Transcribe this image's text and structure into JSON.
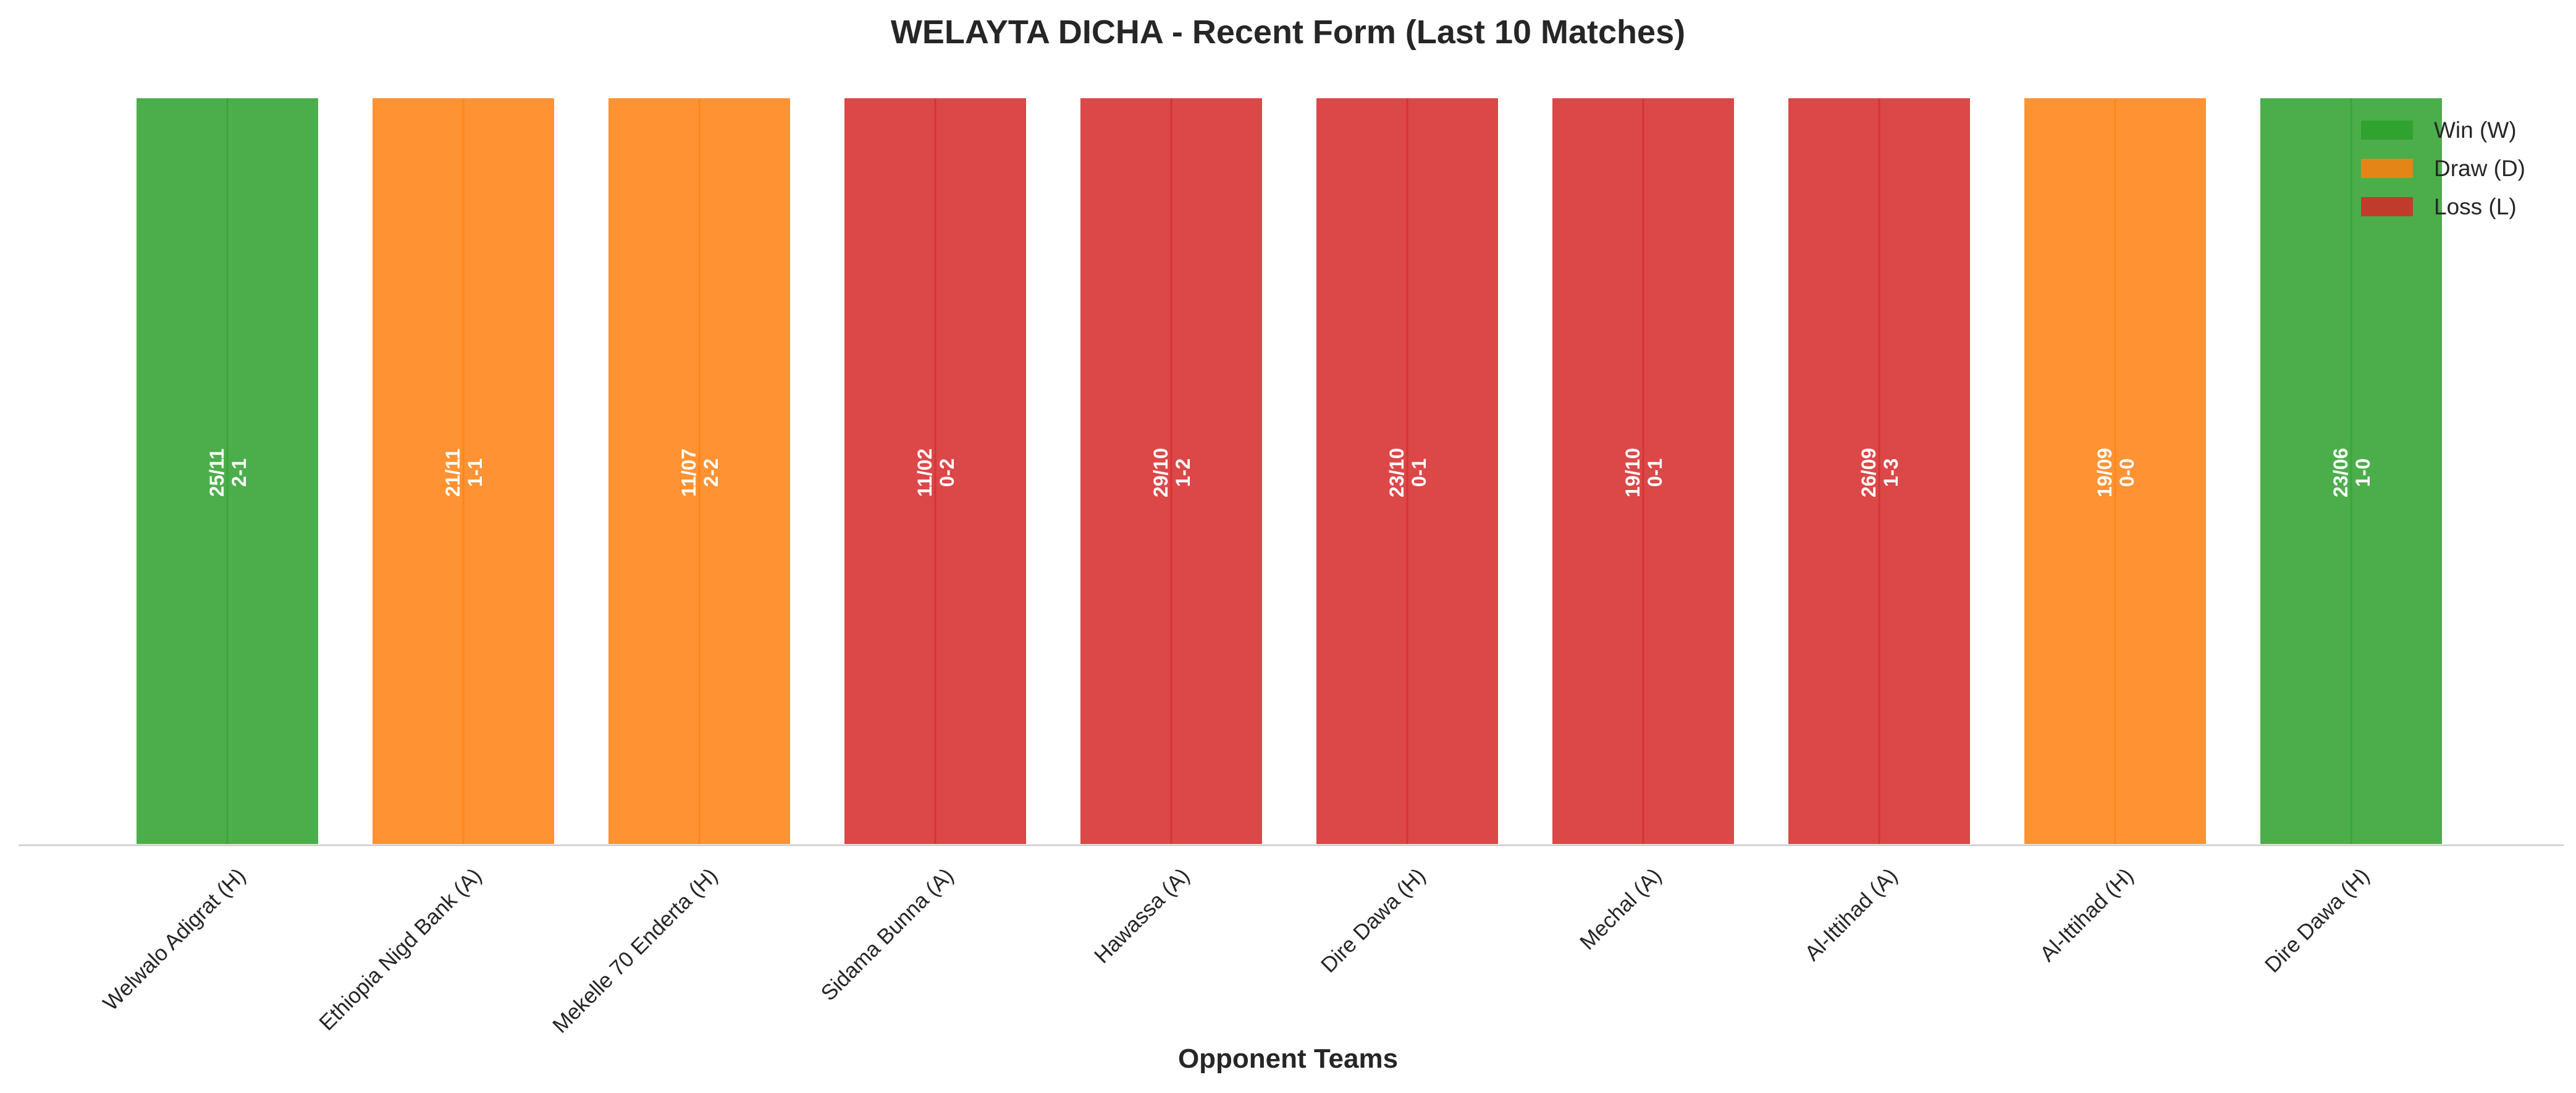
{
  "chart_data": {
    "type": "bar",
    "title": "WELAYTA DICHA - Recent Form (Last 10 Matches)",
    "xlabel": "Opponent Teams",
    "ylabel": "",
    "grid": false,
    "legend_position": "top-right",
    "colors": {
      "W": "#2ca02c",
      "D": "#ff7f0e",
      "L": "#d62728"
    },
    "legend": [
      {
        "key": "W",
        "label": "Win (W)"
      },
      {
        "key": "D",
        "label": "Draw (D)"
      },
      {
        "key": "L",
        "label": "Loss (L)"
      }
    ],
    "categories": [
      "Welwalo Adigrat (H)",
      "Ethiopia Nigd Bank (A)",
      "Mekelle 70 Enderta (H)",
      "Sidama Bunna (A)",
      "Hawassa (A)",
      "Dire Dawa (H)",
      "Mechal (A)",
      "Al-Ittihad (A)",
      "Al-Ittihad (H)",
      "Dire Dawa (H)"
    ],
    "results": [
      "W",
      "D",
      "D",
      "L",
      "L",
      "L",
      "L",
      "L",
      "D",
      "W"
    ],
    "values": [
      1,
      1,
      1,
      1,
      1,
      1,
      1,
      1,
      1,
      1
    ],
    "dates": [
      "25/11",
      "21/11",
      "11/07",
      "11/02",
      "29/10",
      "23/10",
      "19/10",
      "26/09",
      "19/09",
      "23/06"
    ],
    "scores": [
      "2-1",
      "1-1",
      "2-2",
      "0-2",
      "1-2",
      "0-1",
      "0-1",
      "1-3",
      "0-0",
      "1-0"
    ]
  }
}
